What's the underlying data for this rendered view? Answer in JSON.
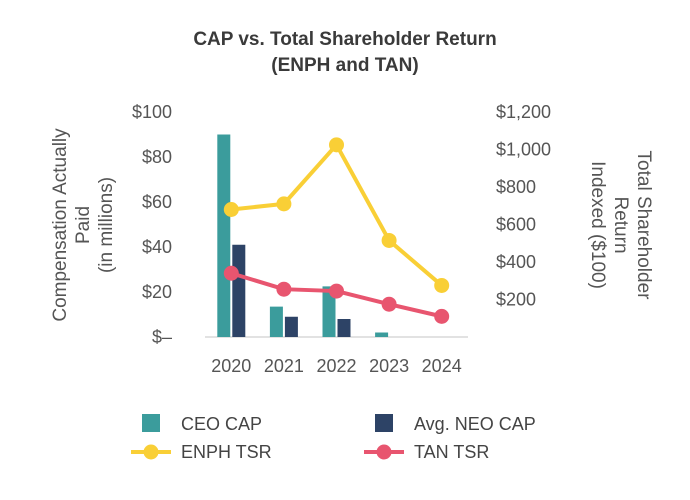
{
  "chart_data": {
    "type": "bar",
    "title_line1": "CAP vs. Total Shareholder Return",
    "title_line2": "(ENPH and TAN)",
    "categories": [
      "2020",
      "2021",
      "2022",
      "2023",
      "2024"
    ],
    "ylabel_left_line1": "Compensation Actually",
    "ylabel_left_line2": "Paid",
    "ylabel_left_line3": "(in millions)",
    "ylabel_right_line1": "Total Shareholder",
    "ylabel_right_line2": "Return",
    "ylabel_right_line3": "Indexed ($100)",
    "ylim_left": [
      0,
      100
    ],
    "ylim_right": [
      0,
      1200
    ],
    "left_ticks": [
      {
        "value": 0,
        "label": "$–"
      },
      {
        "value": 20,
        "label": "$20"
      },
      {
        "value": 40,
        "label": "$40"
      },
      {
        "value": 60,
        "label": "$60"
      },
      {
        "value": 80,
        "label": "$80"
      },
      {
        "value": 100,
        "label": "$100"
      }
    ],
    "right_ticks": [
      {
        "value": 200,
        "label": "$200"
      },
      {
        "value": 400,
        "label": "$400"
      },
      {
        "value": 600,
        "label": "$600"
      },
      {
        "value": 800,
        "label": "$800"
      },
      {
        "value": 1000,
        "label": "$1,000"
      },
      {
        "value": 1200,
        "label": "$1,200"
      }
    ],
    "bar_series": [
      {
        "name": "CEO CAP",
        "color": "#3b9c9c",
        "values": [
          90,
          13.5,
          22.5,
          2,
          0
        ]
      },
      {
        "name": "Avg. NEO CAP",
        "color": "#2d4366",
        "values": [
          41,
          9,
          8,
          0,
          0
        ]
      }
    ],
    "line_series": [
      {
        "name": "ENPH TSR",
        "color": "#f9cf36",
        "values": [
          680,
          710,
          1025,
          515,
          275
        ]
      },
      {
        "name": "TAN TSR",
        "color": "#e8556f",
        "values": [
          340,
          255,
          245,
          175,
          110
        ]
      }
    ],
    "grid": false,
    "legend_position": "bottom"
  }
}
